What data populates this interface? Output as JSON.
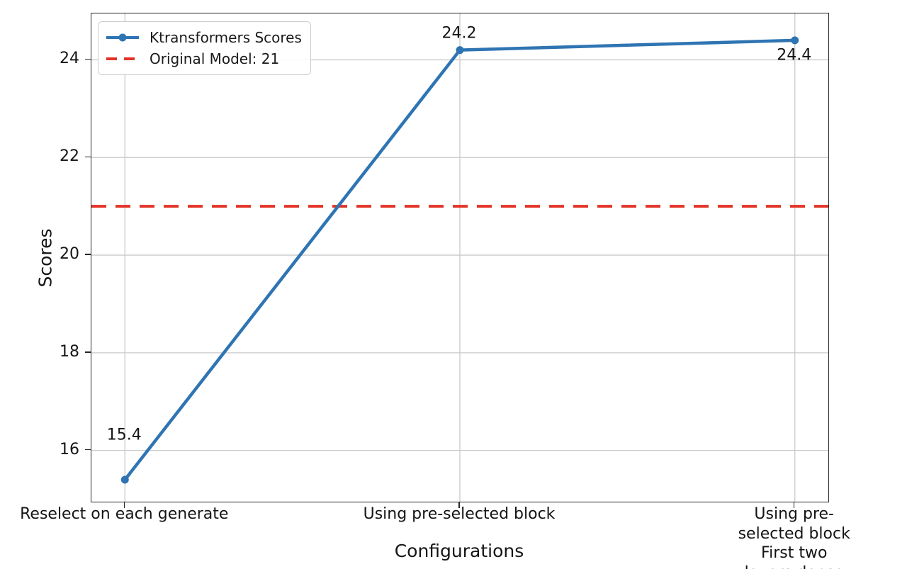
{
  "chart_data": {
    "type": "line",
    "xlabel": "Configurations",
    "ylabel": "Scores",
    "categories": [
      "Reselect on each generate",
      "Using pre-selected block",
      "Using pre-selected block\nFirst two layers dense"
    ],
    "series": [
      {
        "name": "Ktransformers Scores",
        "values": [
          15.4,
          24.2,
          24.4
        ],
        "color": "#2f74b3",
        "marker": "circle",
        "line_style": "solid"
      }
    ],
    "reference_line": {
      "name": "Original Model: 21",
      "value": 21,
      "color": "#e33226",
      "line_style": "dashed"
    },
    "data_labels": [
      "15.4",
      "24.2",
      "24.4"
    ],
    "y_ticks": [
      "16",
      "18",
      "20",
      "22",
      "24"
    ],
    "y_tick_values": [
      16,
      18,
      20,
      22,
      24
    ],
    "xlim": [
      -0.1,
      2.1
    ],
    "ylim": [
      14.95,
      24.95
    ],
    "grid": true,
    "grid_color": "#cacaca",
    "legend_position": "upper left"
  }
}
